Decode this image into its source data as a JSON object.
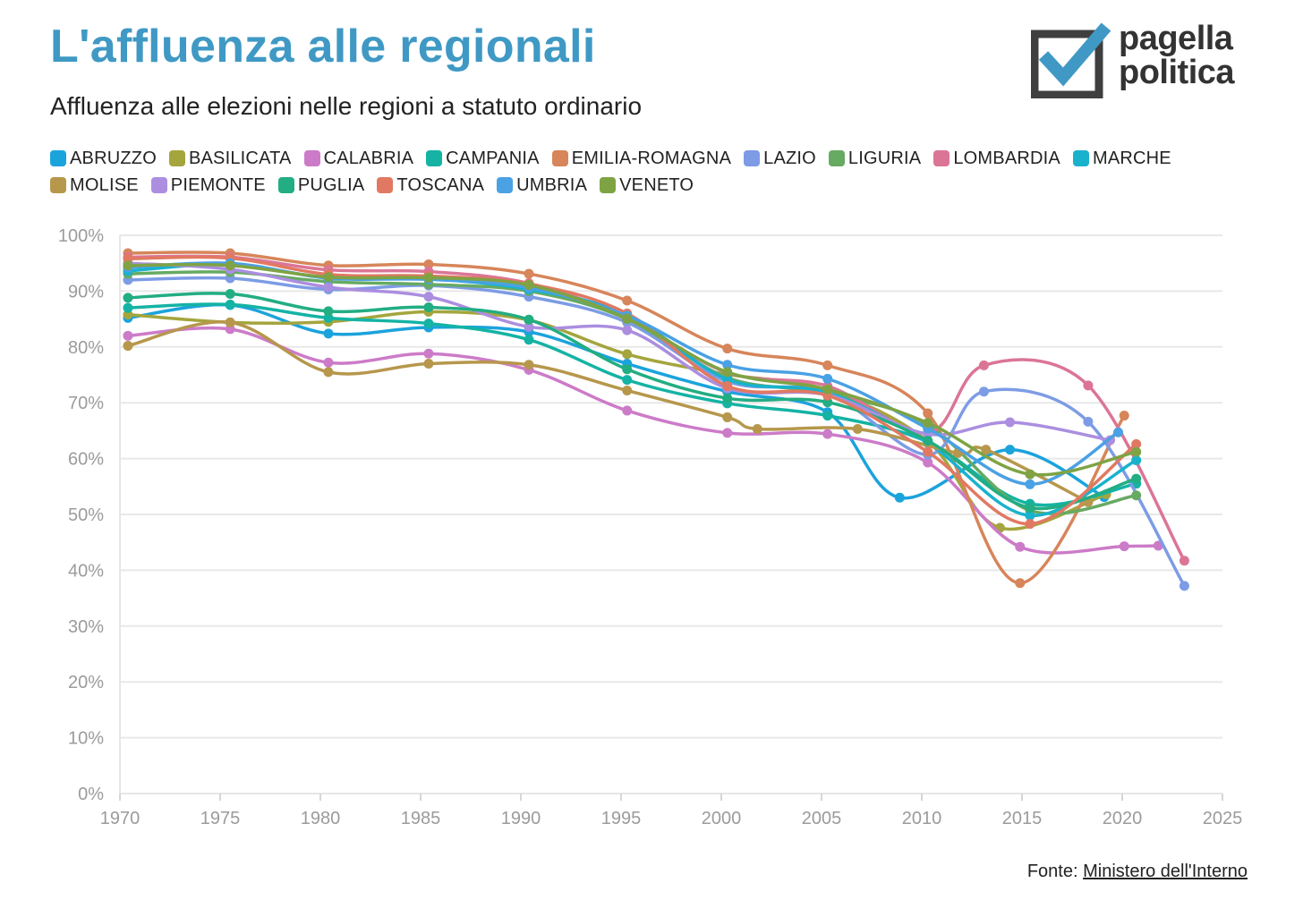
{
  "header": {
    "title": "L'affluenza alle regionali",
    "subtitle": "Affluenza alle elezioni nelle regioni a statuto ordinario"
  },
  "logo": {
    "line1": "pagella",
    "line2": "politica"
  },
  "footer": {
    "prefix": "Fonte: ",
    "link": "Ministero dell'Interno"
  },
  "chart_data": {
    "type": "line",
    "title": "L'affluenza alle regionali",
    "subtitle": "Affluenza alle elezioni nelle regioni a statuto ordinario",
    "xlabel": "",
    "ylabel": "",
    "xlim": [
      1970,
      2025
    ],
    "ylim": [
      0,
      100
    ],
    "xticks": [
      "1970",
      "1975",
      "1980",
      "1985",
      "1990",
      "1995",
      "2000",
      "2005",
      "2010",
      "2015",
      "2020",
      "2025"
    ],
    "yticks": [
      "0%",
      "10%",
      "20%",
      "30%",
      "40%",
      "50%",
      "60%",
      "70%",
      "80%",
      "90%",
      "100%"
    ],
    "grid": true,
    "legend_position": "top",
    "series": [
      {
        "name": "ABRUZZO",
        "color": "#1ba3dc",
        "points": [
          [
            1970.4,
            85.2
          ],
          [
            1975.5,
            87.5
          ],
          [
            1980.4,
            82.4
          ],
          [
            1985.4,
            83.5
          ],
          [
            1990.4,
            82.7
          ],
          [
            1995.3,
            77.0
          ],
          [
            2000.3,
            72.0
          ],
          [
            2005.3,
            68.3
          ],
          [
            2008.9,
            53.0
          ],
          [
            2014.4,
            61.6
          ],
          [
            2019.1,
            53.1
          ]
        ]
      },
      {
        "name": "BASILICATA",
        "color": "#a4a53d",
        "points": [
          [
            1970.4,
            85.8
          ],
          [
            1975.5,
            84.4
          ],
          [
            1980.4,
            84.5
          ],
          [
            1985.4,
            86.3
          ],
          [
            1990.4,
            84.8
          ],
          [
            1995.3,
            78.7
          ],
          [
            2000.3,
            75.1
          ],
          [
            2005.3,
            72.3
          ],
          [
            2010.3,
            63.1
          ],
          [
            2013.9,
            47.6
          ],
          [
            2019.2,
            53.6
          ]
        ]
      },
      {
        "name": "CALABRIA",
        "color": "#cc7bc8",
        "points": [
          [
            1970.4,
            82.0
          ],
          [
            1975.5,
            83.2
          ],
          [
            1980.4,
            77.2
          ],
          [
            1985.4,
            78.8
          ],
          [
            1990.4,
            75.9
          ],
          [
            1995.3,
            68.6
          ],
          [
            2000.3,
            64.6
          ],
          [
            2005.3,
            64.4
          ],
          [
            2010.3,
            59.3
          ],
          [
            2014.9,
            44.2
          ],
          [
            2020.1,
            44.3
          ],
          [
            2021.8,
            44.4
          ]
        ]
      },
      {
        "name": "CAMPANIA",
        "color": "#14b3a4",
        "points": [
          [
            1970.4,
            87.0
          ],
          [
            1975.5,
            87.6
          ],
          [
            1980.4,
            85.2
          ],
          [
            1985.4,
            84.2
          ],
          [
            1990.4,
            81.3
          ],
          [
            1995.3,
            74.1
          ],
          [
            2000.3,
            69.9
          ],
          [
            2005.3,
            67.7
          ],
          [
            2010.3,
            63.0
          ],
          [
            2015.4,
            51.9
          ],
          [
            2020.7,
            55.5
          ]
        ]
      },
      {
        "name": "EMILIA-ROMAGNA",
        "color": "#d7855a",
        "points": [
          [
            1970.4,
            96.8
          ],
          [
            1975.5,
            96.8
          ],
          [
            1980.4,
            94.6
          ],
          [
            1985.4,
            94.8
          ],
          [
            1990.4,
            93.1
          ],
          [
            1995.3,
            88.3
          ],
          [
            2000.3,
            79.7
          ],
          [
            2005.3,
            76.7
          ],
          [
            2010.3,
            68.1
          ],
          [
            2014.9,
            37.7
          ],
          [
            2020.1,
            67.7
          ]
        ]
      },
      {
        "name": "LAZIO",
        "color": "#7d9ce5",
        "points": [
          [
            1970.4,
            92.0
          ],
          [
            1975.5,
            92.3
          ],
          [
            1980.4,
            90.3
          ],
          [
            1985.4,
            91.0
          ],
          [
            1990.4,
            89.0
          ],
          [
            1995.3,
            84.4
          ],
          [
            2000.3,
            73.8
          ],
          [
            2005.3,
            71.8
          ],
          [
            2010.3,
            60.7
          ],
          [
            2013.1,
            72.0
          ],
          [
            2018.3,
            66.6
          ],
          [
            2023.1,
            37.2
          ]
        ]
      },
      {
        "name": "LIGURIA",
        "color": "#67aa62",
        "points": [
          [
            1970.4,
            93.1
          ],
          [
            1975.5,
            93.4
          ],
          [
            1980.4,
            91.7
          ],
          [
            1985.4,
            91.2
          ],
          [
            1990.4,
            90.0
          ],
          [
            1995.3,
            85.0
          ],
          [
            2000.3,
            74.5
          ],
          [
            2005.3,
            71.7
          ],
          [
            2010.3,
            66.0
          ],
          [
            2015.4,
            50.7
          ],
          [
            2020.7,
            53.4
          ]
        ]
      },
      {
        "name": "LOMBARDIA",
        "color": "#db7596",
        "points": [
          [
            1970.4,
            96.1
          ],
          [
            1975.5,
            96.1
          ],
          [
            1980.4,
            93.8
          ],
          [
            1985.4,
            93.5
          ],
          [
            1990.4,
            91.4
          ],
          [
            1995.3,
            85.2
          ],
          [
            2000.3,
            75.4
          ],
          [
            2005.3,
            73.0
          ],
          [
            2010.3,
            64.6
          ],
          [
            2013.1,
            76.7
          ],
          [
            2018.3,
            73.1
          ],
          [
            2023.1,
            41.7
          ]
        ]
      },
      {
        "name": "MARCHE",
        "color": "#19b2cd",
        "points": [
          [
            1970.4,
            93.6
          ],
          [
            1975.5,
            94.8
          ],
          [
            1980.4,
            92.4
          ],
          [
            1985.4,
            92.2
          ],
          [
            1990.4,
            90.3
          ],
          [
            1995.3,
            85.8
          ],
          [
            2000.3,
            74.2
          ],
          [
            2005.3,
            71.8
          ],
          [
            2010.3,
            62.8
          ],
          [
            2015.4,
            49.8
          ],
          [
            2020.7,
            59.7
          ]
        ]
      },
      {
        "name": "MOLISE",
        "color": "#b6974c",
        "points": [
          [
            1970.4,
            80.2
          ],
          [
            1975.5,
            84.4
          ],
          [
            1980.4,
            75.5
          ],
          [
            1985.4,
            77.0
          ],
          [
            1990.4,
            76.8
          ],
          [
            1995.3,
            72.2
          ],
          [
            2000.3,
            67.4
          ],
          [
            2001.8,
            65.3
          ],
          [
            2006.8,
            65.3
          ],
          [
            2011.8,
            61.0
          ],
          [
            2013.2,
            61.6
          ],
          [
            2018.3,
            52.2
          ]
        ]
      },
      {
        "name": "PIEMONTE",
        "color": "#ab8ee0",
        "points": [
          [
            1970.4,
            95.0
          ],
          [
            1975.5,
            93.9
          ],
          [
            1980.4,
            90.7
          ],
          [
            1985.4,
            89.0
          ],
          [
            1990.4,
            83.6
          ],
          [
            1995.3,
            83.0
          ],
          [
            2000.3,
            72.6
          ],
          [
            2005.3,
            71.4
          ],
          [
            2010.3,
            64.4
          ],
          [
            2014.4,
            66.5
          ],
          [
            2019.4,
            63.3
          ]
        ]
      },
      {
        "name": "PUGLIA",
        "color": "#22ad82",
        "points": [
          [
            1970.4,
            88.8
          ],
          [
            1975.5,
            89.5
          ],
          [
            1980.4,
            86.4
          ],
          [
            1985.4,
            87.1
          ],
          [
            1990.4,
            84.9
          ],
          [
            1995.3,
            76.0
          ],
          [
            2000.3,
            70.8
          ],
          [
            2005.3,
            70.1
          ],
          [
            2010.3,
            63.2
          ],
          [
            2015.4,
            51.2
          ],
          [
            2020.7,
            56.4
          ]
        ]
      },
      {
        "name": "TOSCANA",
        "color": "#e17962",
        "points": [
          [
            1970.4,
            95.8
          ],
          [
            1975.5,
            95.9
          ],
          [
            1980.4,
            93.0
          ],
          [
            1985.4,
            92.7
          ],
          [
            1990.4,
            91.3
          ],
          [
            1995.3,
            86.0
          ],
          [
            2000.3,
            73.0
          ],
          [
            2005.3,
            71.3
          ],
          [
            2010.3,
            61.2
          ],
          [
            2015.4,
            48.3
          ],
          [
            2020.7,
            62.6
          ]
        ]
      },
      {
        "name": "UMBRIA",
        "color": "#4aa1e4",
        "points": [
          [
            1970.4,
            94.2
          ],
          [
            1975.5,
            95.0
          ],
          [
            1980.4,
            92.3
          ],
          [
            1985.4,
            92.1
          ],
          [
            1990.4,
            90.6
          ],
          [
            1995.3,
            85.6
          ],
          [
            2000.3,
            76.8
          ],
          [
            2005.3,
            74.3
          ],
          [
            2010.3,
            65.4
          ],
          [
            2015.4,
            55.4
          ],
          [
            2019.8,
            64.7
          ]
        ]
      },
      {
        "name": "VENETO",
        "color": "#7fa344",
        "points": [
          [
            1970.4,
            94.6
          ],
          [
            1975.5,
            94.6
          ],
          [
            1980.4,
            92.5
          ],
          [
            1985.4,
            92.4
          ],
          [
            1990.4,
            91.1
          ],
          [
            1995.3,
            85.1
          ],
          [
            2000.3,
            75.5
          ],
          [
            2005.3,
            72.4
          ],
          [
            2010.3,
            66.4
          ],
          [
            2015.4,
            57.2
          ],
          [
            2020.7,
            61.2
          ]
        ]
      }
    ]
  }
}
